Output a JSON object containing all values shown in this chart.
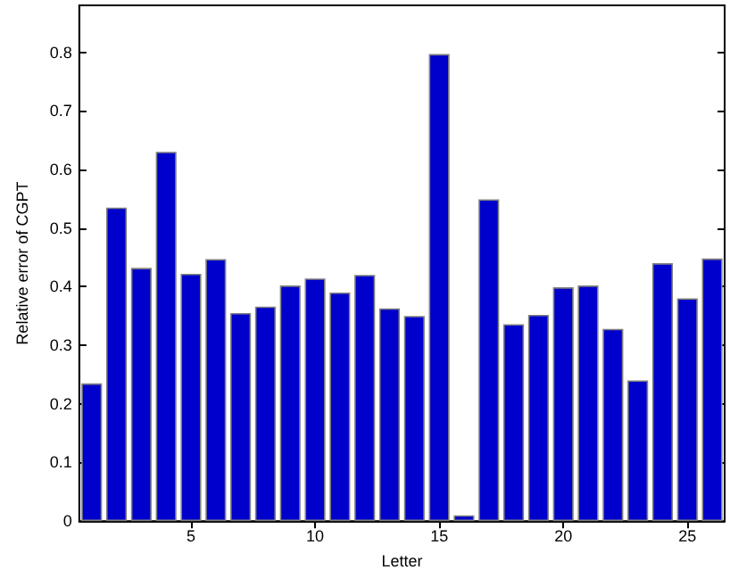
{
  "chart_data": {
    "type": "bar",
    "xlabel": "Letter",
    "ylabel": "Relative error of CGPT",
    "x": [
      1,
      2,
      3,
      4,
      5,
      6,
      7,
      8,
      9,
      10,
      11,
      12,
      13,
      14,
      15,
      16,
      17,
      18,
      19,
      20,
      21,
      22,
      23,
      24,
      25,
      26
    ],
    "values": [
      0.235,
      0.535,
      0.432,
      0.63,
      0.422,
      0.447,
      0.355,
      0.366,
      0.402,
      0.414,
      0.39,
      0.42,
      0.363,
      0.35,
      0.797,
      0.01,
      0.549,
      0.336,
      0.352,
      0.399,
      0.402,
      0.328,
      0.24,
      0.44,
      0.38,
      0.448
    ],
    "color": "#0000cc",
    "xlim": [
      0.5,
      26.5
    ],
    "xticks": [
      5,
      10,
      15,
      20,
      25
    ],
    "ylim": [
      0,
      0.88
    ],
    "yticks": [
      0,
      0.1,
      0.2,
      0.3,
      0.4,
      0.5,
      0.6,
      0.7,
      0.8
    ],
    "grid": false
  }
}
